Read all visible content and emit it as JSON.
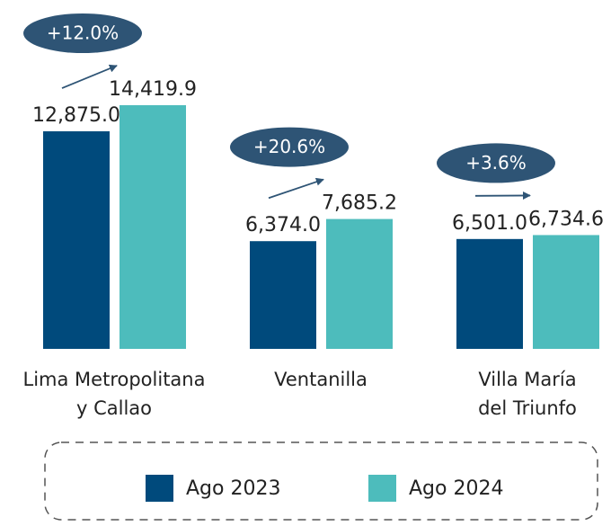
{
  "chart_data": {
    "type": "bar",
    "categories": [
      "Lima Metropolitana\ny Callao",
      "Ventanilla",
      "Villa María\ndel Triunfo"
    ],
    "series": [
      {
        "name": "Ago 2023",
        "color": "#004a7c",
        "values": [
          12875.0,
          6374.0,
          6501.0
        ],
        "value_labels": [
          "12,875.0",
          "6,374.0",
          "6,501.0"
        ]
      },
      {
        "name": "Ago 2024",
        "color": "#4dbcbc",
        "values": [
          14419.9,
          7685.2,
          6734.6
        ],
        "value_labels": [
          "14,419.9",
          "7,685.2",
          "6,734.6"
        ]
      }
    ],
    "annotations": [
      "+12.0%",
      "+20.6%",
      "+3.6%"
    ]
  }
}
